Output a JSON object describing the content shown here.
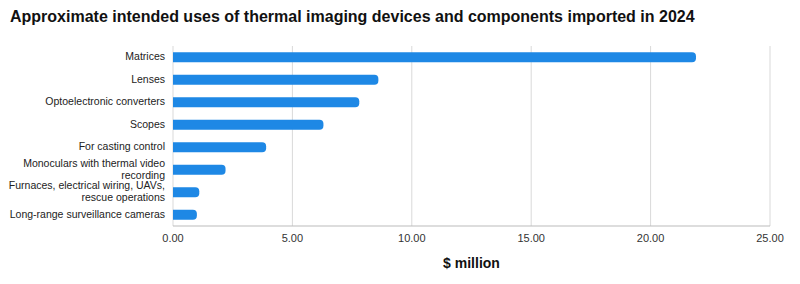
{
  "chart_data": {
    "type": "bar",
    "title": "Approximate intended uses of thermal imaging devices and components imported in 2024",
    "orientation": "horizontal",
    "categories": [
      "Matrices",
      "Lenses",
      "Optoelectronic converters",
      "Scopes",
      "For casting control",
      "Monoculars with thermal video recording",
      "Furnaces, electrical wiring, UAVs, rescue operations",
      "Long-range surveillance cameras"
    ],
    "values": [
      21.9,
      8.6,
      7.8,
      6.3,
      3.9,
      2.2,
      1.1,
      1.0
    ],
    "color": "#1e88e5",
    "xlabel": "$ million",
    "xlim": [
      0,
      25
    ],
    "xticks": [
      {
        "value": 0,
        "label": "0.00"
      },
      {
        "value": 5,
        "label": "5.00"
      },
      {
        "value": 10,
        "label": "10.00"
      },
      {
        "value": 15,
        "label": "15.00"
      },
      {
        "value": 20,
        "label": "20.00"
      },
      {
        "value": 25,
        "label": "25.00"
      }
    ],
    "grid": true
  }
}
